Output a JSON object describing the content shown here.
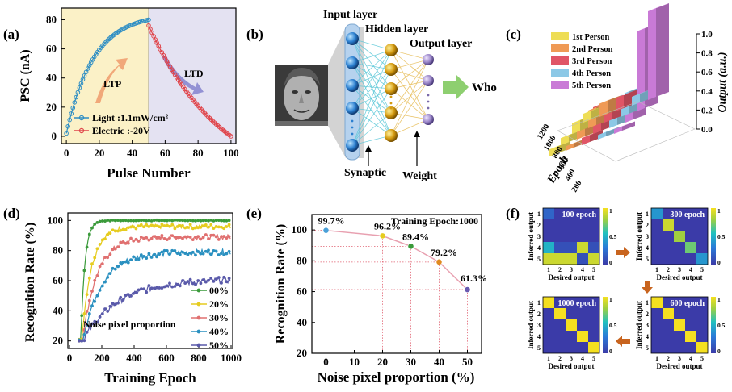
{
  "panel_labels": [
    "(a)",
    "(b)",
    "(c)",
    "(d)",
    "(e)",
    "(f)"
  ],
  "chart_data": [
    {
      "id": "a",
      "type": "line",
      "xlabel": "Pulse Number",
      "ylabel": "PSC (nA)",
      "xlim": [
        -3,
        103
      ],
      "ylim": [
        -5,
        88
      ],
      "xticks": [
        0,
        20,
        40,
        60,
        80,
        100
      ],
      "yticks": [
        0,
        20,
        40,
        60,
        80
      ],
      "ltp_label": "LTP",
      "ltd_label": "LTD",
      "series": [
        {
          "name": "Light :1.1mW/cm²",
          "color": "#2e8ec4",
          "range": [
            0,
            50
          ],
          "y_start": 2,
          "y_end": 80
        },
        {
          "name": "Electric :-20V",
          "color": "#e0444a",
          "range": [
            50,
            100
          ],
          "y_start": 76,
          "y_end": 0
        }
      ]
    },
    {
      "id": "c",
      "type": "bar",
      "zlabel": "Output (a.u.)",
      "ylabel": "Epoch",
      "zticks": [
        "0.0",
        "0.2",
        "0.4",
        "0.6",
        "0.8",
        "1.0"
      ],
      "epoch_ticks": [
        "200",
        "400",
        "600",
        "800",
        "1000",
        "1200"
      ],
      "legend": [
        {
          "label": "1st Person",
          "color": "#eedd55"
        },
        {
          "label": "2nd Person",
          "color": "#ef9a55"
        },
        {
          "label": "3rd Person",
          "color": "#e05566"
        },
        {
          "label": "4th Person",
          "color": "#8cc8e6"
        },
        {
          "label": "5th Person",
          "color": "#c97ad6"
        }
      ],
      "categories": [
        "100",
        "300",
        "600",
        "1000"
      ],
      "series": [
        {
          "name": "1st Person",
          "values": [
            0.1,
            0.12,
            0.08,
            0.08
          ]
        },
        {
          "name": "2nd Person",
          "values": [
            0.15,
            0.2,
            0.12,
            0.05
          ]
        },
        {
          "name": "3rd Person",
          "values": [
            0.15,
            0.12,
            0.3,
            0.08
          ]
        },
        {
          "name": "4th Person",
          "values": [
            0.1,
            0.25,
            0.1,
            0.05
          ]
        },
        {
          "name": "5th Person",
          "values": [
            1.0,
            0.9,
            0.1,
            0.05
          ]
        }
      ]
    },
    {
      "id": "d",
      "type": "line",
      "xlabel": "Training Epoch",
      "ylabel": "Recognition Rate (%)",
      "xlim": [
        -10,
        1010
      ],
      "ylim": [
        15,
        105
      ],
      "xticks": [
        0,
        200,
        400,
        600,
        800,
        1000
      ],
      "yticks": [
        20,
        40,
        60,
        80,
        100
      ],
      "annotation": "Noise pixel proportion",
      "series": [
        {
          "name": "00%",
          "color": "#3a9a3a",
          "final": 100,
          "onset": 70,
          "tau": 25
        },
        {
          "name": "20%",
          "color": "#e6cc20",
          "final": 96,
          "onset": 75,
          "tau": 60
        },
        {
          "name": "30%",
          "color": "#e07070",
          "final": 89,
          "onset": 80,
          "tau": 90
        },
        {
          "name": "40%",
          "color": "#2a90c0",
          "final": 79,
          "onset": 80,
          "tau": 120
        },
        {
          "name": "50%",
          "color": "#5a5aaa",
          "final": 61,
          "onset": 80,
          "tau": 220
        }
      ]
    },
    {
      "id": "e",
      "type": "line",
      "xlabel": "Noise pixel proportion (%)",
      "ylabel": "Recognition Rate (%)",
      "title": "Training Epoch:1000",
      "xlim": [
        -5,
        55
      ],
      "ylim": [
        20,
        110
      ],
      "xticks": [
        0,
        10,
        20,
        30,
        40,
        50
      ],
      "yticks": [
        20,
        40,
        60,
        80,
        100
      ],
      "x": [
        0,
        20,
        30,
        40,
        50
      ],
      "y": [
        99.7,
        96.2,
        89.4,
        79.2,
        61.3
      ],
      "labels": [
        "99.7%",
        "96.2%",
        "89.4%",
        "79.2%",
        "61.3%"
      ],
      "point_colors": [
        "#4aa0d8",
        "#e6cc20",
        "#3a9a3a",
        "#e08a20",
        "#6a5ab0"
      ]
    },
    {
      "id": "f",
      "type": "heatmap",
      "xlabel": "Desired output",
      "ylabel": "Inferred output",
      "ticks": [
        "1",
        "2",
        "3",
        "4",
        "5"
      ],
      "colorbar_ticks": [
        "1",
        "0.5",
        "0"
      ],
      "matrices": [
        {
          "title": "100 epoch",
          "cells": [
            [
              0.2,
              0,
              0,
              0,
              0
            ],
            [
              0,
              0,
              0,
              0,
              0
            ],
            [
              0,
              0,
              0,
              0,
              0
            ],
            [
              0.5,
              0.1,
              0.1,
              0.9,
              0.1
            ],
            [
              0.9,
              0.9,
              0.9,
              0.1,
              0.9
            ]
          ]
        },
        {
          "title": "300 epoch",
          "cells": [
            [
              0.4,
              0,
              0,
              0,
              0
            ],
            [
              0,
              0.9,
              0,
              0,
              0
            ],
            [
              0,
              0,
              0.8,
              0,
              0
            ],
            [
              0,
              0,
              0,
              0.7,
              0
            ],
            [
              0,
              0,
              0,
              0,
              0.4
            ]
          ]
        },
        {
          "title": "600 epoch",
          "cells": [
            [
              1,
              0,
              0,
              0,
              0
            ],
            [
              0,
              1,
              0,
              0,
              0
            ],
            [
              0,
              0,
              1,
              0,
              0
            ],
            [
              0,
              0,
              0,
              1,
              0
            ],
            [
              0,
              0,
              0,
              0,
              1
            ]
          ]
        },
        {
          "title": "1000 epoch",
          "cells": [
            [
              1,
              0,
              0,
              0,
              0
            ],
            [
              0,
              1,
              0,
              0,
              0
            ],
            [
              0,
              0,
              1,
              0,
              0
            ],
            [
              0,
              0,
              0,
              1,
              0
            ],
            [
              0,
              0,
              0,
              0,
              1
            ]
          ]
        }
      ]
    }
  ],
  "network": {
    "input_layer": "Input layer",
    "hidden_layer": "Hidden layer",
    "output_layer": "Output layer",
    "synaptic": "Synaptic",
    "weight": "Weight",
    "who": "Who",
    "face_image": "face-photo"
  }
}
